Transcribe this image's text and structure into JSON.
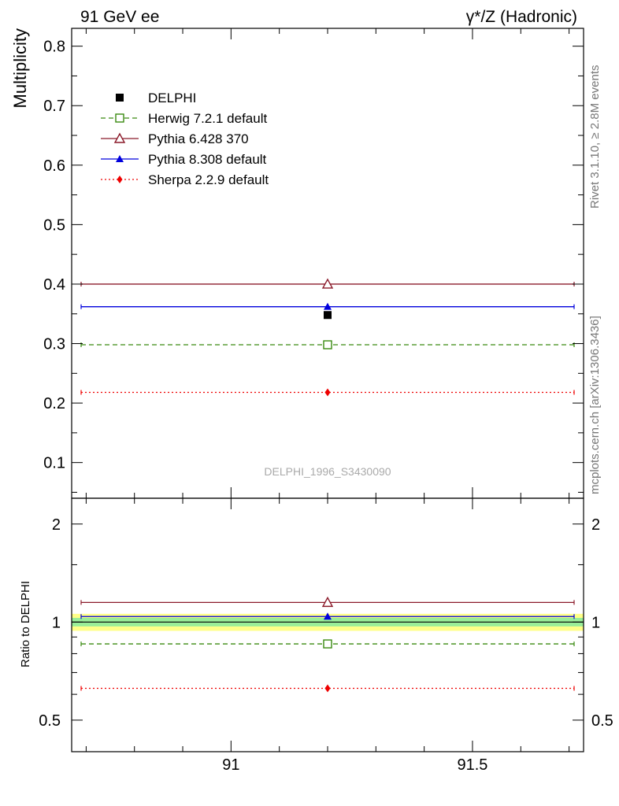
{
  "header": {
    "left": "91 GeV ee",
    "right": "γ*/Z (Hadronic)"
  },
  "side_labels": {
    "rivet": "Rivet 3.1.10, ≥ 2.8M events",
    "mcplots": "mcplots.cern.ch [arXiv:1306.3436]"
  },
  "watermark": "DELPHI_1996_S3430090",
  "colors": {
    "data": "#000000",
    "herwig": "#3a8a10",
    "pythia6": "#8b1a2a",
    "pythia8": "#0000dd",
    "sherpa": "#ee0000",
    "band_inner": "#99ee99",
    "band_outer": "#ffff88"
  },
  "chart_data": [
    {
      "type": "scatter",
      "panel": "main",
      "ylabel": "Multiplicity",
      "xlim": [
        90.67,
        91.73
      ],
      "ylim": [
        0.04,
        0.83
      ],
      "yticks": [
        0.1,
        0.2,
        0.3,
        0.4,
        0.5,
        0.6,
        0.7,
        0.8
      ],
      "ytick_labels": [
        "0.1",
        "0.2",
        "0.3",
        "0.4",
        "0.5",
        "0.6",
        "0.7",
        "0.8"
      ],
      "legend_position": "top-left",
      "x": [
        91.2
      ],
      "xerr_range": [
        90.67,
        91.73
      ],
      "series": [
        {
          "key": "data",
          "name": "DELPHI",
          "values": [
            0.348
          ],
          "marker": "square-filled",
          "line": "none"
        },
        {
          "key": "herwig",
          "name": "Herwig 7.2.1 default",
          "values": [
            0.298
          ],
          "marker": "square-open",
          "line": "dashed"
        },
        {
          "key": "pythia6",
          "name": "Pythia 6.428 370",
          "values": [
            0.4
          ],
          "marker": "triangle-open",
          "line": "solid"
        },
        {
          "key": "pythia8",
          "name": "Pythia 8.308 default",
          "values": [
            0.362
          ],
          "marker": "triangle-filled",
          "line": "solid"
        },
        {
          "key": "sherpa",
          "name": "Sherpa 2.2.9 default",
          "values": [
            0.218
          ],
          "marker": "diamond-filled",
          "line": "dotted"
        }
      ]
    },
    {
      "type": "scatter",
      "panel": "ratio",
      "ylabel": "Ratio to DELPHI",
      "xlim": [
        90.67,
        91.73
      ],
      "ylim": [
        0.4,
        2.4
      ],
      "yscale": "log",
      "yticks": [
        0.5,
        1,
        2
      ],
      "ytick_labels": [
        "0.5",
        "1",
        "2"
      ],
      "xticks": [
        91,
        91.5
      ],
      "xtick_labels": [
        "91",
        "91.5"
      ],
      "band_inner": [
        0.97,
        1.03
      ],
      "band_outer": [
        0.94,
        1.06
      ],
      "x": [
        91.2
      ],
      "series": [
        {
          "key": "herwig",
          "values": [
            0.857
          ],
          "marker": "square-open",
          "line": "dashed"
        },
        {
          "key": "pythia6",
          "values": [
            1.149
          ],
          "marker": "triangle-open",
          "line": "solid"
        },
        {
          "key": "pythia8",
          "values": [
            1.04
          ],
          "marker": "triangle-filled",
          "line": "solid"
        },
        {
          "key": "sherpa",
          "values": [
            0.626
          ],
          "marker": "diamond-filled",
          "line": "dotted"
        }
      ]
    }
  ]
}
